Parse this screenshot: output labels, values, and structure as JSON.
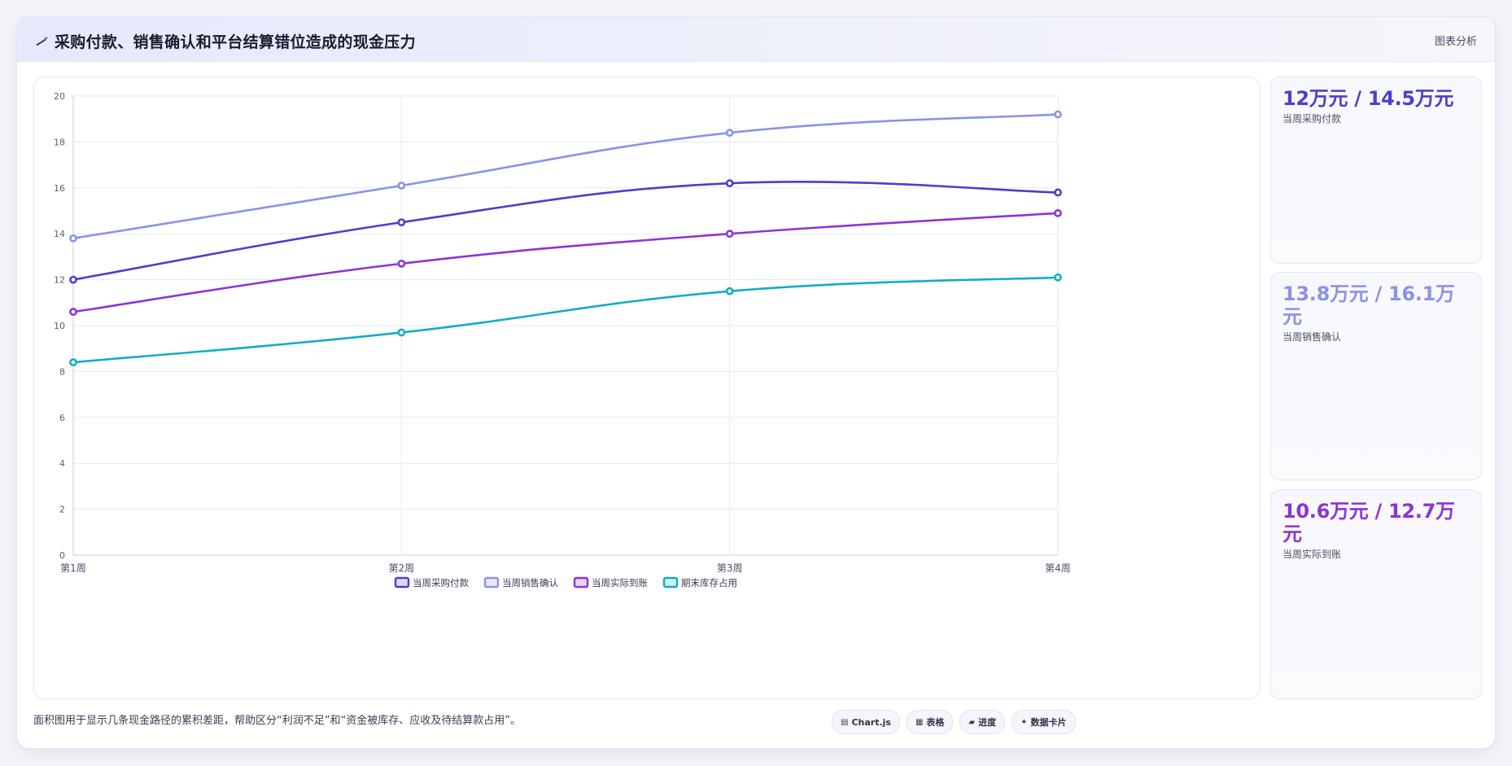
{
  "header": {
    "title": "采购付款、销售确认和平台结算错位造成的现金压力",
    "tag": "图表分析",
    "title_icon": "pen-icon"
  },
  "chart_data": {
    "type": "line",
    "categories": [
      "第1周",
      "第2周",
      "第3周",
      "第4周"
    ],
    "ylim": [
      0,
      20
    ],
    "yticks": [
      0,
      2,
      4,
      6,
      8,
      10,
      12,
      14,
      16,
      18,
      20
    ],
    "grid": true,
    "legend_position": "bottom",
    "series": [
      {
        "name": "当周采购付款",
        "values": [
          12.0,
          14.5,
          16.2,
          15.8
        ],
        "color": "#4b3fcf"
      },
      {
        "name": "当周销售确认",
        "values": [
          13.8,
          16.1,
          18.4,
          19.2
        ],
        "color": "#8a93e6"
      },
      {
        "name": "当周实际到账",
        "values": [
          10.6,
          12.7,
          14.0,
          14.9
        ],
        "color": "#8c34d8"
      },
      {
        "name": "期末库存占用",
        "values": [
          8.4,
          9.7,
          11.5,
          12.1
        ],
        "color": "#14adc4"
      }
    ]
  },
  "cards": [
    {
      "value": "12万元 / 14.5万元",
      "label": "当周采购付款",
      "color": "#4b3fcf"
    },
    {
      "value": "13.8万元 / 16.1万元",
      "label": "当周销售确认",
      "color": "#8a93e6"
    },
    {
      "value": "10.6万元 / 12.7万元",
      "label": "当周实际到账",
      "color": "#8c34d8"
    }
  ],
  "footer": {
    "note": "面积图用于显示几条现金路径的累积差距，帮助区分“利润不足”和“资金被库存、应收及待结算款占用”。",
    "chips": [
      {
        "label": "Chart.js",
        "icon": "chart-icon",
        "glyph": "▤"
      },
      {
        "label": "表格",
        "icon": "table-icon",
        "glyph": "▦"
      },
      {
        "label": "进度",
        "icon": "progress-icon",
        "glyph": "▰"
      },
      {
        "label": "数据卡片",
        "icon": "card-icon",
        "glyph": "✦"
      }
    ]
  }
}
